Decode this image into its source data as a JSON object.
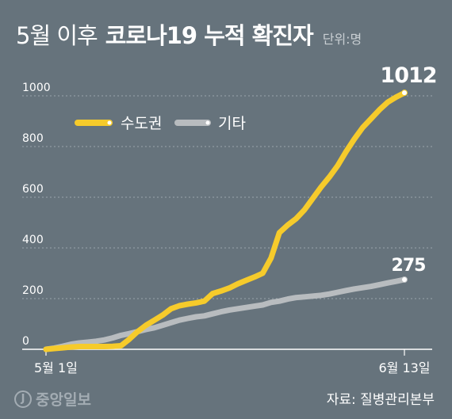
{
  "header": {
    "title_light": "5월 이후",
    "title_bold": "코로나19 누적 확진자",
    "unit": "단위:명"
  },
  "source": "자료: 질병관리본부",
  "logo": {
    "mark": "J",
    "text": "중앙일보"
  },
  "colors": {
    "background": "#66737c",
    "capital": "#f6cb2b",
    "other": "#b8bcbf",
    "grid": "#9aa4ab"
  },
  "chart_data": {
    "type": "line",
    "ylim": [
      0,
      1000
    ],
    "yticks": [
      0,
      200,
      400,
      600,
      800,
      1000
    ],
    "ytick_labels": [
      "0",
      "200",
      "400",
      "600",
      "800",
      "1000"
    ],
    "x": [
      0,
      1,
      2,
      3,
      4,
      5,
      6,
      7,
      8,
      9,
      10,
      11,
      12,
      13,
      14,
      15,
      16,
      17,
      18,
      19,
      20,
      21,
      22,
      23,
      24,
      25,
      26,
      27,
      28,
      29,
      30,
      31,
      32,
      33,
      34,
      35,
      36,
      37,
      38,
      39,
      40,
      41,
      42,
      43
    ],
    "x_labels": [
      {
        "x": 0,
        "label": "5월 1일"
      },
      {
        "x": 43,
        "label": "6월 13일"
      }
    ],
    "series": [
      {
        "name": "수도권",
        "color": "#f6cb2b",
        "values": [
          0,
          3,
          6,
          9,
          11,
          11,
          11,
          11,
          12,
          14,
          40,
          70,
          95,
          115,
          135,
          160,
          172,
          178,
          183,
          190,
          220,
          230,
          242,
          258,
          272,
          285,
          300,
          360,
          460,
          490,
          515,
          550,
          595,
          640,
          680,
          725,
          780,
          830,
          875,
          910,
          945,
          975,
          995,
          1012
        ],
        "end_label": "1012"
      },
      {
        "name": "기타",
        "color": "#b8bcbf",
        "values": [
          0,
          5,
          12,
          20,
          25,
          28,
          32,
          37,
          45,
          55,
          62,
          70,
          78,
          85,
          95,
          105,
          115,
          122,
          128,
          132,
          140,
          148,
          155,
          160,
          165,
          170,
          175,
          185,
          190,
          198,
          204,
          207,
          210,
          213,
          218,
          225,
          232,
          238,
          243,
          248,
          255,
          262,
          268,
          275
        ],
        "end_label": "275"
      }
    ]
  }
}
